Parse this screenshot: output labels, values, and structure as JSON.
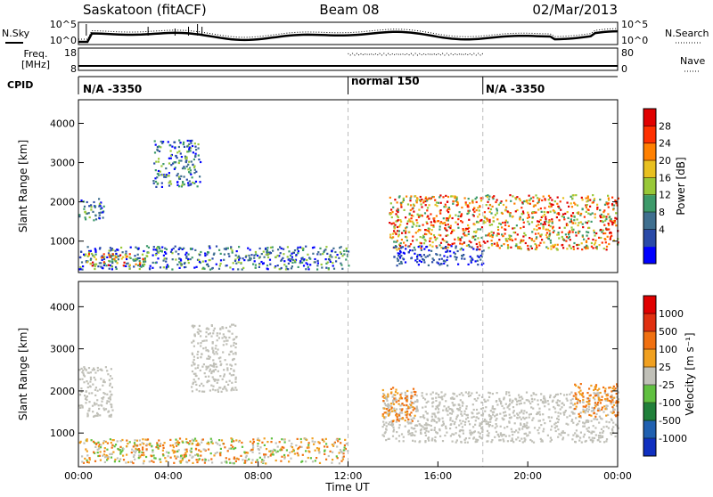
{
  "header": {
    "station": "Saskatoon (fitACF)",
    "beam": "Beam 08",
    "date": "02/Mar/2013"
  },
  "top_panels": {
    "nsky_label": "N.Sky",
    "nsky_ticks": [
      "10^5",
      "10^0"
    ],
    "nsearch_label": "N.Search",
    "nsearch_ticks": [
      "10^5",
      "10^0"
    ],
    "freq_label": "Freq.",
    "freq_unit": "[MHz]",
    "freq_ticks": [
      "18",
      "8"
    ],
    "nave_label": "Nave",
    "nave_ticks": [
      "80",
      "0"
    ],
    "cpid_label": "CPID",
    "cpid_segments": [
      {
        "label": "N/A -3350",
        "start_hour": 0
      },
      {
        "label": "normal 150",
        "start_hour": 12
      },
      {
        "label": "N/A -3350",
        "start_hour": 18
      }
    ]
  },
  "chart_data": [
    {
      "type": "heatmap",
      "name": "power-panel",
      "ylabel": "Slant Range [km]",
      "colorbar_label": "Power [dB]",
      "colorbar_ticks": [
        "28",
        "24",
        "20",
        "16",
        "12",
        "8",
        "4"
      ],
      "colors": [
        "#0000ff",
        "#2a4aa8",
        "#3f6f8f",
        "#3d9a6a",
        "#98c838",
        "#e8c020",
        "#ff8000",
        "#ff3000",
        "#e00000"
      ],
      "yticks": [
        "4000",
        "3000",
        "2000",
        "1000"
      ],
      "ylim": [
        200,
        4600
      ],
      "xlim": [
        0,
        24
      ],
      "echo_regions": [
        {
          "x": [
            0.0,
            1.1
          ],
          "y": [
            1500,
            2100
          ],
          "power": "mid"
        },
        {
          "x": [
            0.0,
            12.0
          ],
          "y": [
            300,
            900
          ],
          "power": "mid"
        },
        {
          "x": [
            0.3,
            3.0
          ],
          "y": [
            400,
            700
          ],
          "power": "high"
        },
        {
          "x": [
            3.3,
            5.4
          ],
          "y": [
            2400,
            3600
          ],
          "power": "mid"
        },
        {
          "x": [
            13.8,
            24.0
          ],
          "y": [
            800,
            2200
          ],
          "power": "high"
        },
        {
          "x": [
            14.0,
            18.0
          ],
          "y": [
            400,
            900
          ],
          "power": "low"
        }
      ]
    },
    {
      "type": "heatmap",
      "name": "velocity-panel",
      "ylabel": "Slant Range [km]",
      "colorbar_label": "Velocity [m s⁻¹]",
      "colorbar_ticks": [
        "1000",
        "500",
        "100",
        "25",
        "-25",
        "-100",
        "-500",
        "-1000"
      ],
      "colors": [
        "#1030c0",
        "#2060b0",
        "#20803a",
        "#60c040",
        "#c0c0b8",
        "#f0a020",
        "#f07010",
        "#e03010",
        "#e00000"
      ],
      "yticks": [
        "4000",
        "3000",
        "2000",
        "1000"
      ],
      "ylim": [
        200,
        4600
      ],
      "xlim": [
        0,
        24
      ],
      "echo_regions": [
        {
          "x": [
            0.0,
            1.5
          ],
          "y": [
            1400,
            2600
          ],
          "velocity": "ground"
        },
        {
          "x": [
            0.0,
            12.0
          ],
          "y": [
            300,
            900
          ],
          "velocity": "mixed"
        },
        {
          "x": [
            5.0,
            7.0
          ],
          "y": [
            2000,
            3600
          ],
          "velocity": "ground"
        },
        {
          "x": [
            13.5,
            24.0
          ],
          "y": [
            800,
            2000
          ],
          "velocity": "ground"
        },
        {
          "x": [
            13.5,
            15.0
          ],
          "y": [
            1300,
            2100
          ],
          "velocity": "away"
        },
        {
          "x": [
            22.0,
            24.0
          ],
          "y": [
            1400,
            2200
          ],
          "velocity": "away"
        }
      ]
    }
  ],
  "time_axis": {
    "xlabel": "Time UT",
    "ticks": [
      "00:00",
      "04:00",
      "08:00",
      "12:00",
      "16:00",
      "20:00",
      "00:00"
    ]
  }
}
